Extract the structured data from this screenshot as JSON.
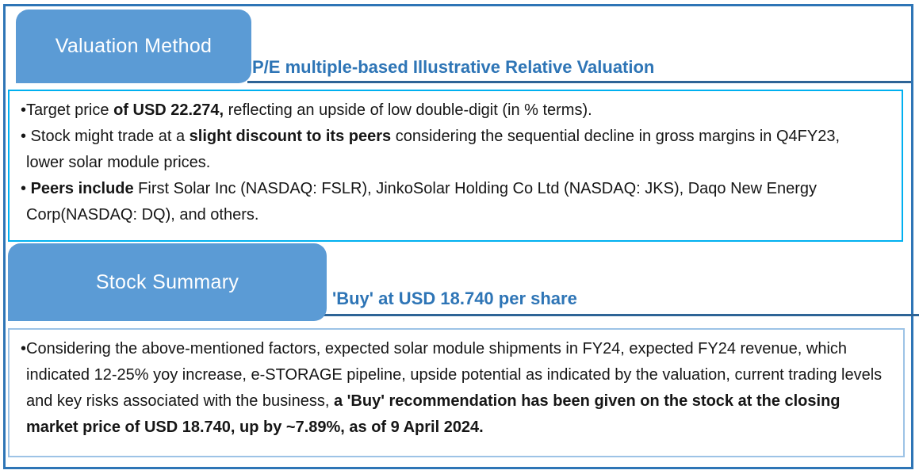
{
  "colors": {
    "tab_fill": "#5B9BD5",
    "header_blue": "#2E75B6",
    "underline_blue": "#2E6496",
    "outer_border": "#2E75B6",
    "valuation_box_border": "#00B0F0",
    "summary_box_border": "#9DC3E6"
  },
  "sections": [
    {
      "tab_label": "Valuation Method",
      "header": "P/E multiple-based Illustrative Relative Valuation",
      "bullets": [
        {
          "segments": [
            {
              "text": "•Target price ",
              "bold": false
            },
            {
              "text": "of USD 22.274,",
              "bold": true
            },
            {
              "text": " reflecting an upside of low double-digit (in % terms).",
              "bold": false
            }
          ]
        },
        {
          "segments": [
            {
              "text": "• Stock might trade at a ",
              "bold": false
            },
            {
              "text": "slight discount to its peers",
              "bold": true
            },
            {
              "text": " considering the sequential decline in gross margins in Q4FY23, lower solar module prices.",
              "bold": false
            }
          ]
        },
        {
          "segments": [
            {
              "text": "• ",
              "bold": false
            },
            {
              "text": "Peers include",
              "bold": true
            },
            {
              "text": " First Solar Inc (NASDAQ: FSLR), JinkoSolar Holding Co Ltd (NASDAQ: JKS), Daqo New Energy Corp(NASDAQ: DQ), and others.",
              "bold": false
            }
          ]
        }
      ]
    },
    {
      "tab_label": "Stock Summary",
      "header": "'Buy' at USD 18.740 per share",
      "bullets": [
        {
          "segments": [
            {
              "text": "•Considering the above-mentioned factors, expected solar module shipments in FY24, expected FY24 revenue, which indicated 12-25% yoy increase, e-STORAGE pipeline, upside potential as indicated by the valuation, current trading levels and key risks associated with the business, ",
              "bold": false
            },
            {
              "text": "a 'Buy' recommendation has been given on the stock at the closing market price of USD 18.740, up by ~7.89%, as of 9 April 2024.",
              "bold": true
            }
          ]
        }
      ]
    }
  ]
}
